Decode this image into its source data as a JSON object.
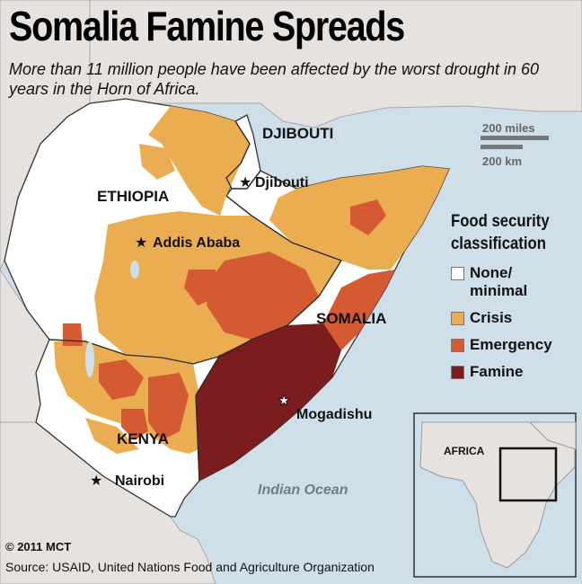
{
  "title": "Somalia Famine Spreads",
  "subtitle": "More than 11 million people have been affected by the worst drought in 60 years in the Horn of Africa.",
  "legend": {
    "title_line1": "Food security",
    "title_line2": "classification",
    "items": [
      {
        "label_line1": "None/",
        "label_line2": "minimal",
        "color": "#ffffff"
      },
      {
        "label_line1": "Crisis",
        "label_line2": "",
        "color": "#eaad52"
      },
      {
        "label_line1": "Emergency",
        "label_line2": "",
        "color": "#d35a33"
      },
      {
        "label_line1": "Famine",
        "label_line2": "",
        "color": "#7b1c1f"
      }
    ]
  },
  "countries": {
    "djibouti": "DJIBOUTI",
    "ethiopia": "ETHIOPIA",
    "somalia": "SOMALIA",
    "kenya": "KENYA"
  },
  "cities": {
    "djibouti": "Djibouti",
    "addis_ababa": "Addis Ababa",
    "mogadishu": "Mogadishu",
    "nairobi": "Nairobi"
  },
  "ocean": "Indian Ocean",
  "scale": {
    "miles": "200 miles",
    "km": "200 km"
  },
  "inset": {
    "label": "AFRICA"
  },
  "colors": {
    "water": "#cfdfea",
    "land_other": "#e5e2df",
    "border": "#333333"
  },
  "footer": {
    "copyright": "© 2011 MCT",
    "source": "Source: USAID, United Nations Food and Agriculture Organization"
  }
}
